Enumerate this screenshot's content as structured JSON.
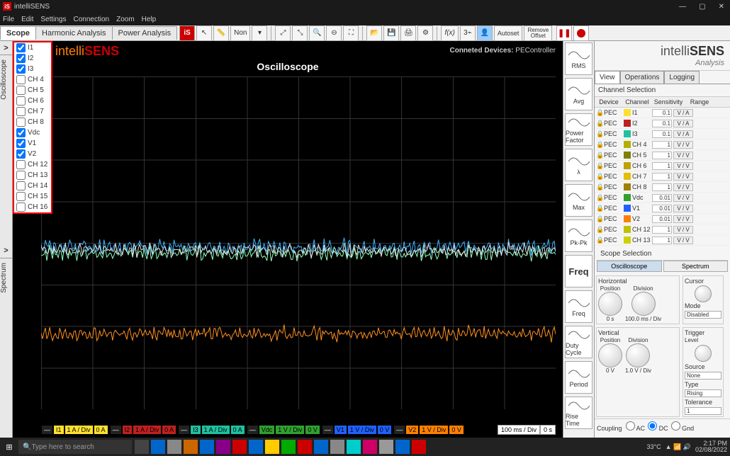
{
  "app": {
    "title": "intelliSENS"
  },
  "menu": [
    "File",
    "Edit",
    "Settings",
    "Connection",
    "Zoom",
    "Help"
  ],
  "maintabs": {
    "items": [
      "Scope",
      "Harmonic Analysis",
      "Power Analysis"
    ],
    "active": 0
  },
  "toolbar": {
    "autoset": "Autoset",
    "removeoffset_l1": "Remove",
    "removeoffset_l2": "Offset",
    "non": "Non"
  },
  "scope": {
    "logo_a": "intelli",
    "logo_b": "SENS",
    "title": "Oscilloscope",
    "connected_label": "Conneted Devices:",
    "connected_val": "PEController",
    "timediv": "100 ms / Div",
    "timeoff": "0 s",
    "waves": [
      {
        "top_pct": 48,
        "color": "#3cb4ff"
      },
      {
        "top_pct": 50,
        "color": "#8fffc0"
      },
      {
        "top_pct": 49,
        "color": "#dddddd"
      },
      {
        "top_pct": 74,
        "color": "#ff9020"
      }
    ]
  },
  "chanlist": [
    {
      "name": "I1",
      "checked": true
    },
    {
      "name": "I2",
      "checked": true
    },
    {
      "name": "I3",
      "checked": true
    },
    {
      "name": "CH 4",
      "checked": false
    },
    {
      "name": "CH 5",
      "checked": false
    },
    {
      "name": "CH 6",
      "checked": false
    },
    {
      "name": "CH 7",
      "checked": false
    },
    {
      "name": "CH 8",
      "checked": false
    },
    {
      "name": "Vdc",
      "checked": true
    },
    {
      "name": "V1",
      "checked": true
    },
    {
      "name": "V2",
      "checked": true
    },
    {
      "name": "CH 12",
      "checked": false
    },
    {
      "name": "CH 13",
      "checked": false
    },
    {
      "name": "CH 14",
      "checked": false
    },
    {
      "name": "CH 15",
      "checked": false
    },
    {
      "name": "CH 16",
      "checked": false
    }
  ],
  "leftlabels": {
    "osc": "Oscilloscope",
    "spec": "Spectrum"
  },
  "chanfooter": [
    {
      "dash": "—",
      "name": "I1",
      "scale": "1 A / Div",
      "off": "0 A",
      "bg": "#ffe030"
    },
    {
      "dash": "—",
      "name": "I2",
      "scale": "1 A / Div",
      "off": "0 A",
      "bg": "#c02020"
    },
    {
      "dash": "—",
      "name": "I3",
      "scale": "1 A / Div",
      "off": "0 A",
      "bg": "#20c0a0"
    },
    {
      "dash": "—",
      "name": "Vdc",
      "scale": "1 V / Div",
      "off": "0 V",
      "bg": "#30a030"
    },
    {
      "dash": "—",
      "name": "V1",
      "scale": "1 V / Div",
      "off": "0 V",
      "bg": "#2060ff"
    },
    {
      "dash": "—",
      "name": "V2",
      "scale": "1 V / Div",
      "off": "0 V",
      "bg": "#ff8000"
    }
  ],
  "meas": [
    {
      "label": "RMS"
    },
    {
      "label": "Avg"
    },
    {
      "label": "Power Factor"
    },
    {
      "label": "λ"
    },
    {
      "label": "Max"
    },
    {
      "label": "Pk-Pk"
    },
    {
      "label": "Freq",
      "big": true
    },
    {
      "label": "Freq"
    },
    {
      "label": "Duty Cycle"
    },
    {
      "label": "Period"
    },
    {
      "label": "Rise Time"
    }
  ],
  "brand": {
    "l1a": "intelli",
    "l1b": "SENS",
    "l2": "Analysis"
  },
  "viewtabs": {
    "items": [
      "View",
      "Operations",
      "Logging"
    ],
    "active": 0
  },
  "chsel": {
    "title": "Channel Selection",
    "headers": [
      "Device",
      "Channel",
      "Sensitivity",
      "Range"
    ],
    "rows": [
      {
        "dev": "PEC",
        "col": "#ffe030",
        "nm": "I1",
        "sens": "0.1",
        "unit": "V / A"
      },
      {
        "dev": "PEC",
        "col": "#c02020",
        "nm": "I2",
        "sens": "0.1",
        "unit": "V / A"
      },
      {
        "dev": "PEC",
        "col": "#20c0a0",
        "nm": "I3",
        "sens": "0.1",
        "unit": "V / A"
      },
      {
        "dev": "PEC",
        "col": "#b0b000",
        "nm": "CH 4",
        "sens": "1",
        "unit": "V / V"
      },
      {
        "dev": "PEC",
        "col": "#808000",
        "nm": "CH 5",
        "sens": "1",
        "unit": "V / V"
      },
      {
        "dev": "PEC",
        "col": "#c0a000",
        "nm": "CH 6",
        "sens": "1",
        "unit": "V / V"
      },
      {
        "dev": "PEC",
        "col": "#e0c000",
        "nm": "CH 7",
        "sens": "1",
        "unit": "V / V"
      },
      {
        "dev": "PEC",
        "col": "#a08000",
        "nm": "CH 8",
        "sens": "1",
        "unit": "V / V"
      },
      {
        "dev": "PEC",
        "col": "#30a030",
        "nm": "Vdc",
        "sens": "0.01",
        "unit": "V / V"
      },
      {
        "dev": "PEC",
        "col": "#2060ff",
        "nm": "V1",
        "sens": "0.01",
        "unit": "V / V"
      },
      {
        "dev": "PEC",
        "col": "#ff8000",
        "nm": "V2",
        "sens": "0.01",
        "unit": "V / V"
      },
      {
        "dev": "PEC",
        "col": "#c0c000",
        "nm": "CH 12",
        "sens": "1",
        "unit": "V / V"
      },
      {
        "dev": "PEC",
        "col": "#d0d000",
        "nm": "CH 13",
        "sens": "1",
        "unit": "V / V"
      }
    ]
  },
  "scopesel": {
    "title": "Scope Selection",
    "osc": "Oscilloscope",
    "spec": "Spectrum"
  },
  "horiz": {
    "title": "Horizontal",
    "pos": "Position",
    "posval": "0 s",
    "div": "Division",
    "divval": "100.0 ms / Div"
  },
  "cursor": {
    "title": "Cursor",
    "mode": "Mode",
    "modeval": "Disabled"
  },
  "vert": {
    "title": "Vertical",
    "pos": "Position",
    "posval": "0 V",
    "div": "Division",
    "divval": "1.0 V / Div"
  },
  "trig": {
    "title": "Trigger",
    "level": "Level",
    "source": "Source",
    "sourceval": "None",
    "type": "Type",
    "typeval": "Rising",
    "tol": "Tolerance",
    "tolval": "1"
  },
  "coupling": {
    "title": "Coupling",
    "opts": [
      "AC",
      "DC",
      "Gnd"
    ],
    "sel": 1
  },
  "taskbar": {
    "search": "Type here to search",
    "temp": "33°C",
    "time": "2:17 PM",
    "date": "02/08/2022"
  }
}
